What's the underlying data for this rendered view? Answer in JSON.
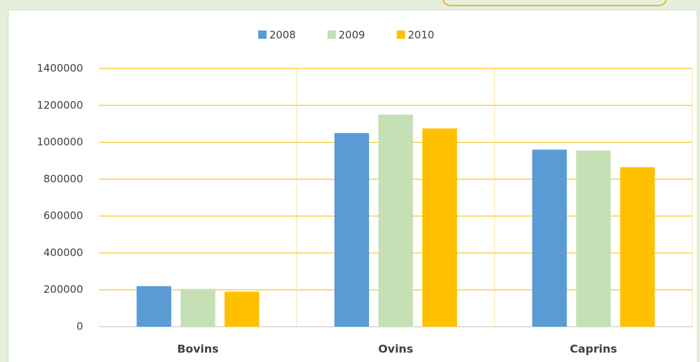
{
  "chart_data": {
    "type": "bar",
    "categories": [
      "Bovins",
      "Ovins",
      "Caprins"
    ],
    "series": [
      {
        "name": "2008",
        "color": "#5b9bd5",
        "values": [
          220000,
          1050000,
          960000
        ]
      },
      {
        "name": "2009",
        "color": "#c5e0b4",
        "values": [
          205000,
          1150000,
          955000
        ]
      },
      {
        "name": "2010",
        "color": "#ffc000",
        "values": [
          190000,
          1075000,
          865000
        ]
      }
    ],
    "ylim": [
      0,
      1400000
    ],
    "yticks": [
      0,
      200000,
      400000,
      600000,
      800000,
      1000000,
      1200000,
      1400000
    ],
    "grid": true,
    "legend": "top"
  }
}
